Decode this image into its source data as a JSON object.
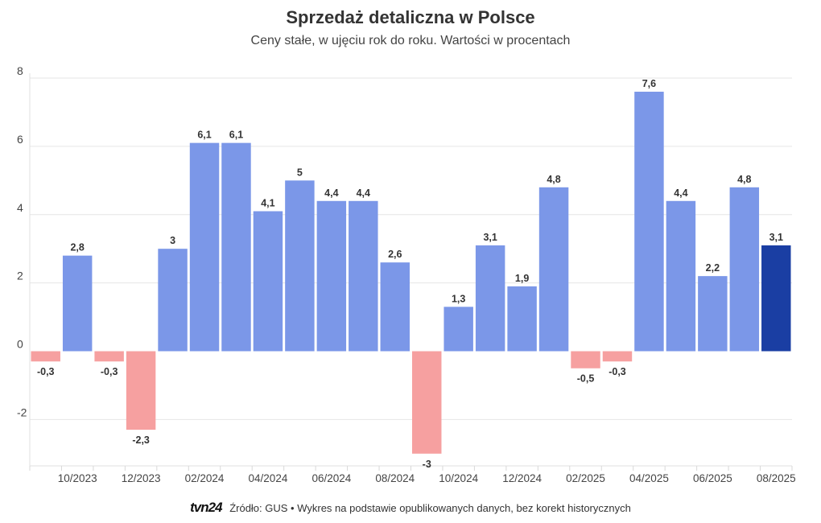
{
  "chart_data": {
    "type": "bar",
    "title": "Sprzedaż detaliczna w Polsce",
    "subtitle": "Ceny stałe, w ujęciu rok do roku. Wartości w procentach",
    "categories": [
      "09/2023",
      "10/2023",
      "11/2023",
      "12/2023",
      "01/2024",
      "02/2024",
      "03/2024",
      "04/2024",
      "05/2024",
      "06/2024",
      "07/2024",
      "08/2024",
      "09/2024",
      "10/2024",
      "11/2024",
      "12/2024",
      "01/2025",
      "02/2025",
      "03/2025",
      "04/2025",
      "05/2025",
      "06/2025",
      "07/2025",
      "08/2025"
    ],
    "values": [
      -0.3,
      2.8,
      -0.3,
      -2.3,
      3,
      6.1,
      6.1,
      4.1,
      5,
      4.4,
      4.4,
      2.6,
      -3,
      1.3,
      3.1,
      1.9,
      4.8,
      -0.5,
      -0.3,
      7.6,
      4.4,
      2.2,
      4.8,
      3.1
    ],
    "value_labels": [
      "-0,3",
      "2,8",
      "-0,3",
      "-2,3",
      "3",
      "6,1",
      "6,1",
      "4,1",
      "5",
      "4,4",
      "4,4",
      "2,6",
      "-3",
      "1,3",
      "3,1",
      "1,9",
      "4,8",
      "-0,5",
      "-0,3",
      "7,6",
      "4,4",
      "2,2",
      "4,8",
      "3,1"
    ],
    "x_tick_labels": [
      "10/2023",
      "12/2023",
      "02/2024",
      "04/2024",
      "06/2024",
      "08/2024",
      "10/2024",
      "12/2024",
      "02/2025",
      "04/2025",
      "06/2025",
      "08/2025"
    ],
    "y_ticks": [
      -2,
      0,
      2,
      4,
      6,
      8
    ],
    "ylim": [
      -3.4,
      8
    ],
    "xlabel": "",
    "ylabel": "",
    "grid": true,
    "colors": {
      "positive": "#7b97e8",
      "negative": "#f6a0a0",
      "highlight": "#1a3ea3"
    },
    "highlight_index": 23
  },
  "footer": {
    "logo": "tvn24",
    "source": "Źródło: GUS • Wykres na podstawie opublikowanych danych, bez korekt historycznych"
  }
}
